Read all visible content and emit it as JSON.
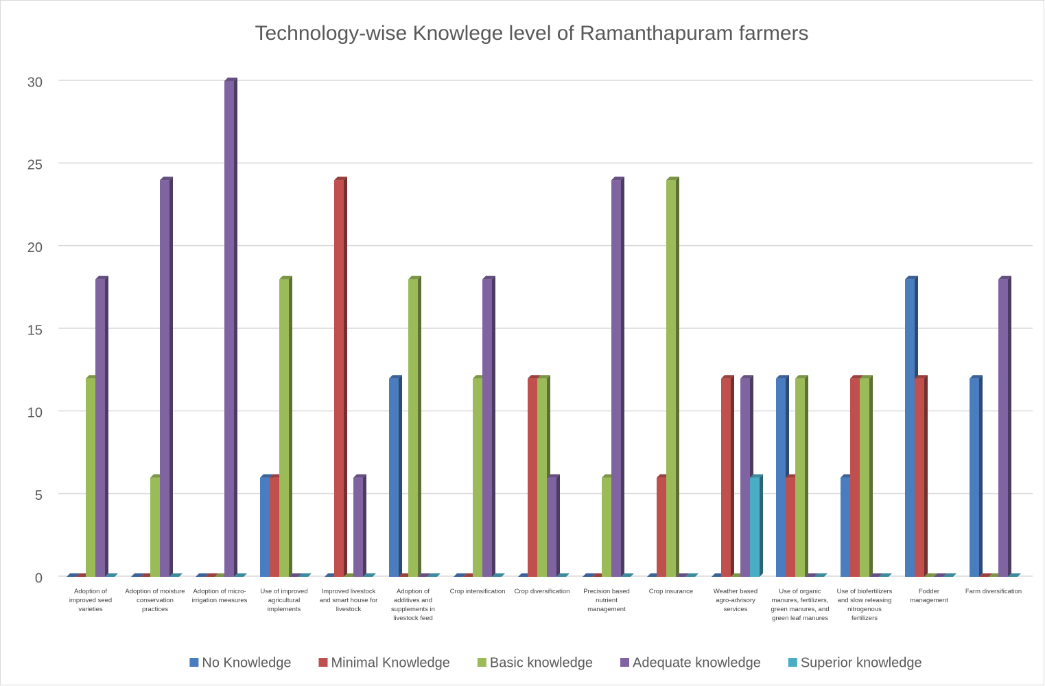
{
  "chart_data": {
    "type": "bar3d",
    "title": "Technology-wise Knowlege level of Ramanthapuram farmers",
    "categories": [
      "Adoption of improved seed varieties",
      "Adoption of moisture conservation practices",
      "Adoption of micro-irrigation measures",
      "Use of improved agricultural implements",
      "Improved livestock and smart house for livestock",
      "Adoption of additives and supplements in livestock feed",
      "Crop intensification",
      "Crop diversification",
      "Precision based nutrient management",
      "Crop insurance",
      "Weather based agro-advisory services",
      "Use of organic manures, fertilizers, green manures, and green leaf manures",
      "Use of biofertilizers and slow releasing nitrogenous fertilizers",
      "Fodder management",
      "Farm diversification"
    ],
    "series": [
      {
        "name": "No Knowledge",
        "color": "#4a7cc0",
        "values": [
          0,
          0,
          0,
          6,
          0,
          12,
          0,
          0,
          0,
          0,
          0,
          12,
          6,
          18,
          12
        ]
      },
      {
        "name": "Minimal Knowledge",
        "color": "#c0504d",
        "values": [
          0,
          0,
          0,
          6,
          24,
          0,
          0,
          12,
          0,
          6,
          12,
          6,
          12,
          12,
          0
        ]
      },
      {
        "name": "Basic knowledge",
        "color": "#9bbb59",
        "values": [
          12,
          6,
          0,
          18,
          0,
          18,
          12,
          12,
          6,
          24,
          0,
          12,
          12,
          0,
          0
        ]
      },
      {
        "name": "Adequate knowledge",
        "color": "#8064a2",
        "values": [
          18,
          24,
          30,
          0,
          6,
          0,
          18,
          6,
          24,
          0,
          12,
          0,
          0,
          0,
          18
        ]
      },
      {
        "name": "Superior knowledge",
        "color": "#4bacc6",
        "values": [
          0,
          0,
          0,
          0,
          0,
          0,
          0,
          0,
          0,
          0,
          6,
          0,
          0,
          0,
          0
        ]
      }
    ],
    "ylim": [
      0,
      30
    ],
    "yticks": [
      0,
      5,
      10,
      15,
      20,
      25,
      30
    ],
    "grid": true,
    "legend": "bottom"
  }
}
